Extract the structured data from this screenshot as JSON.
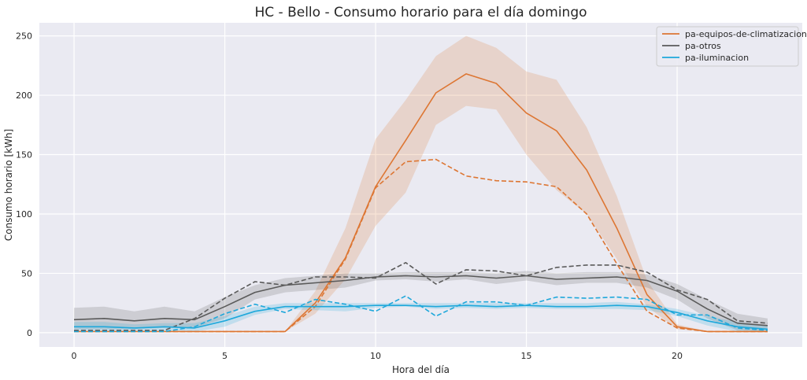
{
  "chart_data": {
    "type": "line",
    "title": "HC - Bello - Consumo horario para el día domingo",
    "xlabel": "Hora del día",
    "ylabel": "Consumo horario [kWh]",
    "xlim": [
      -1.15,
      24.15
    ],
    "ylim": [
      -12,
      261
    ],
    "xticks": [
      0,
      5,
      10,
      15,
      20
    ],
    "yticks": [
      0,
      50,
      100,
      150,
      200,
      250
    ],
    "grid": true,
    "legend_position": "top-right",
    "x": [
      0,
      1,
      2,
      3,
      4,
      5,
      6,
      7,
      8,
      9,
      10,
      11,
      12,
      13,
      14,
      15,
      16,
      17,
      18,
      19,
      20,
      21,
      22,
      23
    ],
    "series": [
      {
        "name": "pa-equipos-de-climatizacion",
        "color": "#dd7633",
        "mean": [
          1,
          1,
          1,
          1,
          1,
          1,
          1,
          1,
          25,
          63,
          123,
          162,
          202,
          218,
          210,
          185,
          170,
          137,
          88,
          32,
          5,
          1,
          1,
          1
        ],
        "band_low": [
          1,
          1,
          1,
          1,
          1,
          1,
          1,
          1,
          16,
          45,
          90,
          118,
          175,
          191,
          188,
          150,
          120,
          100,
          62,
          22,
          3,
          1,
          1,
          1
        ],
        "band_high": [
          1,
          1,
          1,
          1,
          1,
          1,
          1,
          1,
          35,
          88,
          163,
          196,
          233,
          250,
          240,
          220,
          213,
          173,
          115,
          44,
          7,
          1,
          1,
          1
        ],
        "dashed": [
          1,
          1,
          1,
          1,
          1,
          1,
          1,
          1,
          22,
          62,
          122,
          144,
          146,
          132,
          128,
          127,
          123,
          100,
          58,
          18,
          4,
          1,
          1,
          1
        ]
      },
      {
        "name": "pa-otros",
        "color": "#5a5a5a",
        "mean": [
          11,
          12,
          10,
          12,
          11,
          22,
          34,
          40,
          42,
          44,
          47,
          48,
          47,
          48,
          46,
          48,
          45,
          46,
          47,
          44,
          35,
          20,
          8,
          6
        ],
        "band_low": [
          3,
          3,
          3,
          4,
          4,
          12,
          28,
          34,
          36,
          38,
          44,
          45,
          43,
          45,
          41,
          44,
          40,
          42,
          42,
          38,
          28,
          12,
          2,
          1
        ],
        "band_high": [
          21,
          22,
          18,
          22,
          18,
          30,
          40,
          46,
          48,
          50,
          50,
          51,
          51,
          51,
          50,
          52,
          50,
          51,
          51,
          49,
          41,
          28,
          16,
          12
        ],
        "dashed": [
          2,
          2,
          2,
          2,
          12,
          29,
          43,
          40,
          47,
          47,
          46,
          59,
          41,
          53,
          52,
          48,
          55,
          57,
          57,
          51,
          36,
          28,
          10,
          8
        ]
      },
      {
        "name": "pa-iluminacion",
        "color": "#1fa8db",
        "mean": [
          5,
          5,
          4,
          5,
          4,
          10,
          18,
          22,
          22,
          22,
          23,
          23,
          22,
          23,
          22,
          23,
          22,
          22,
          23,
          22,
          17,
          10,
          5,
          3
        ],
        "band_low": [
          1,
          1,
          1,
          1,
          1,
          5,
          15,
          20,
          19,
          18,
          21,
          22,
          20,
          21,
          20,
          21,
          20,
          20,
          20,
          19,
          14,
          6,
          1,
          1
        ],
        "band_high": [
          9,
          9,
          7,
          8,
          8,
          14,
          22,
          25,
          25,
          25,
          25,
          25,
          25,
          25,
          25,
          25,
          25,
          25,
          26,
          24,
          20,
          14,
          9,
          6
        ],
        "dashed": [
          1,
          1,
          1,
          1,
          5,
          16,
          24,
          17,
          28,
          24,
          18,
          31,
          14,
          26,
          26,
          23,
          30,
          29,
          30,
          28,
          15,
          15,
          4,
          2
        ]
      }
    ]
  }
}
